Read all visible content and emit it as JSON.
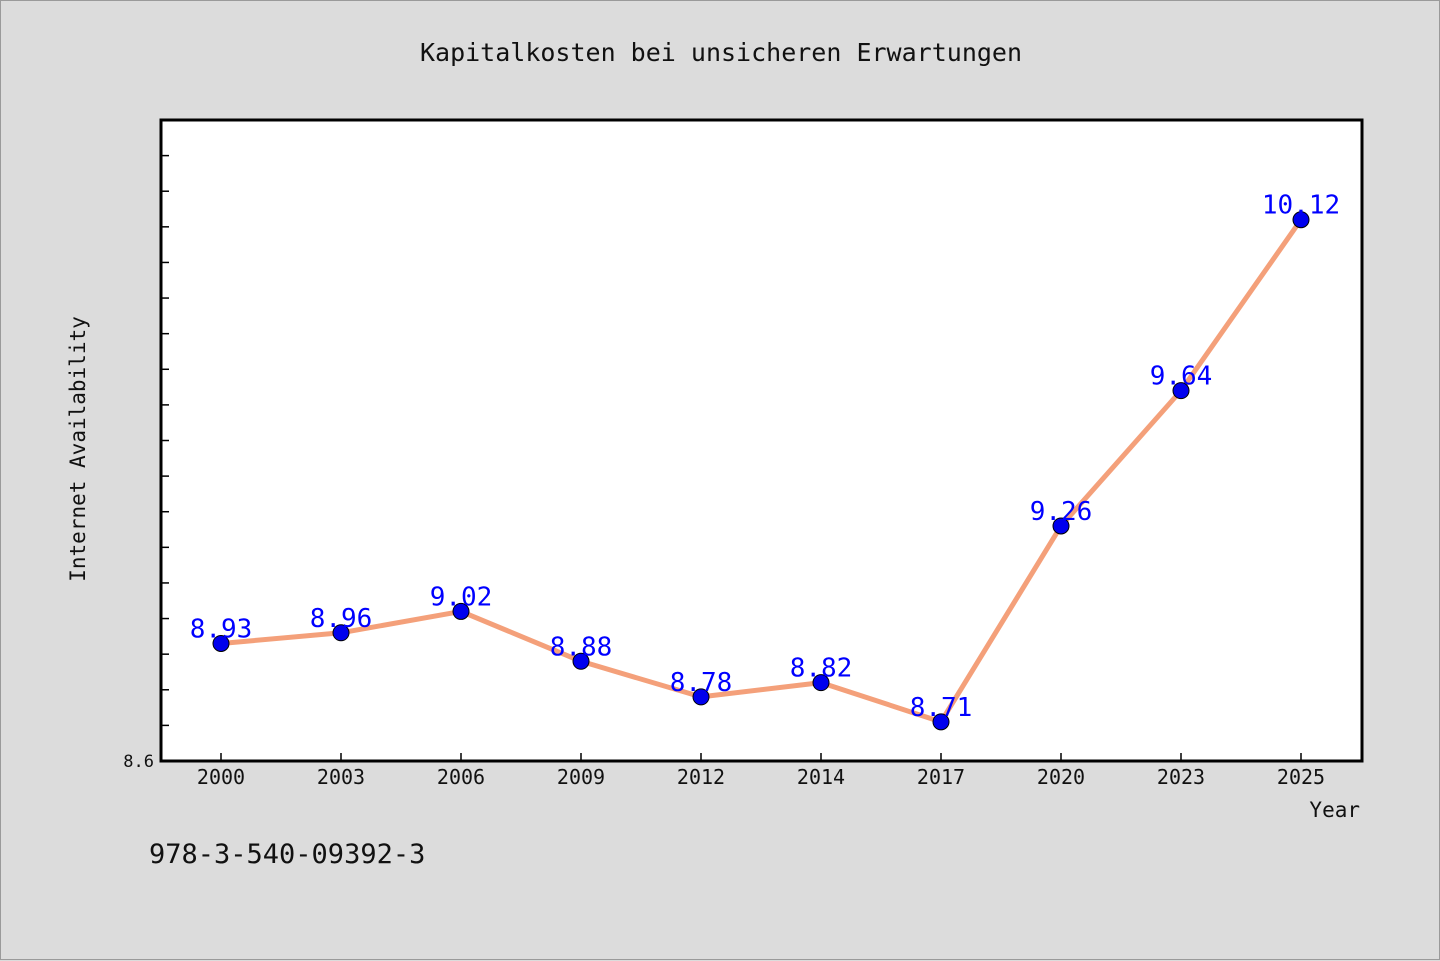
{
  "colors": {
    "background": "#dcdcdc",
    "plot_background": "#ffffff",
    "line": "#f4a07a",
    "marker": "#0000ee",
    "data_label": "#0000ff"
  },
  "footer_code": "978-3-540-09392-3",
  "chart_data": {
    "type": "line",
    "title": "Kapitalkosten bei unsicheren Erwartungen",
    "xlabel": "Year",
    "ylabel": "Internet Availability",
    "categories": [
      "2000",
      "2003",
      "2006",
      "2009",
      "2012",
      "2014",
      "2017",
      "2020",
      "2023",
      "2025"
    ],
    "series": [
      {
        "values": [
          8.93,
          8.96,
          9.02,
          8.88,
          8.78,
          8.82,
          8.71,
          9.26,
          9.64,
          10.12
        ]
      }
    ],
    "data_labels": [
      "8.93",
      "8.96",
      "9.02",
      "8.88",
      "8.78",
      "8.82",
      "8.71",
      "9.26",
      "9.64",
      "10.12"
    ],
    "y_tick_labels": [
      "8.6"
    ],
    "ylim": [
      8.6,
      10.4
    ],
    "grid": false,
    "legend": "none"
  }
}
